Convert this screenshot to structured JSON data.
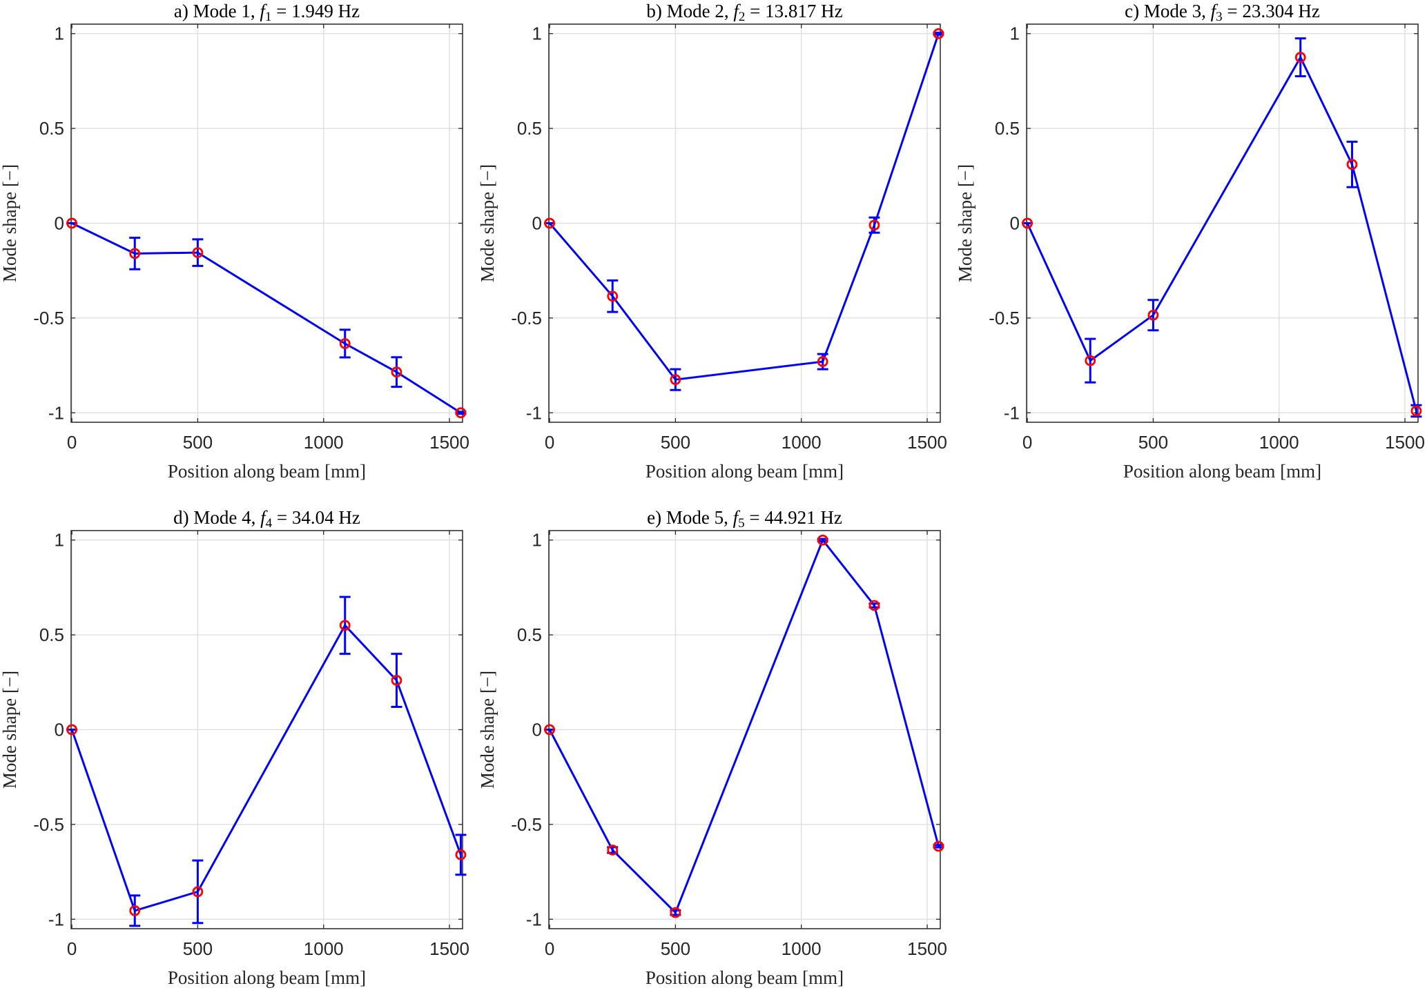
{
  "colors": {
    "line": "#0000ff",
    "marker": "#ff0000",
    "errorbar": "#0000ff",
    "grid": "#dcdcdc",
    "axis": "#262626"
  },
  "chart_data": [
    {
      "type": "line",
      "title": "a) Mode 1, f1 = 1.949 Hz",
      "title_parts": {
        "prefix": "a) Mode 1, ",
        "f": "f",
        "sub": "1",
        "suffix": " = 1.949 Hz"
      },
      "xlabel": "Position along beam [mm]",
      "ylabel": "Mode shape [−]",
      "xlim": [
        -3,
        1552
      ],
      "ylim": [
        -1.05,
        1.05
      ],
      "grid": true,
      "xticks": [
        "0",
        "500",
        "1000",
        "1500"
      ],
      "yticks": [
        "-1",
        "-0.5",
        "0",
        "0.5",
        "1"
      ],
      "x": [
        0,
        250,
        500,
        1085,
        1290,
        1545
      ],
      "y": [
        0,
        -0.16,
        -0.155,
        -0.635,
        -0.785,
        -1
      ],
      "err": [
        0,
        0.083,
        0.07,
        0.073,
        0.078,
        0.005
      ]
    },
    {
      "type": "line",
      "title": "b) Mode 2, f2 = 13.817 Hz",
      "title_parts": {
        "prefix": "b) Mode 2, ",
        "f": "f",
        "sub": "2",
        "suffix": " = 13.817 Hz"
      },
      "xlabel": "Position along beam [mm]",
      "ylabel": "Mode shape [−]",
      "xlim": [
        -3,
        1552
      ],
      "ylim": [
        -1.05,
        1.05
      ],
      "grid": true,
      "xticks": [
        "0",
        "500",
        "1000",
        "1500"
      ],
      "yticks": [
        "-1",
        "-0.5",
        "0",
        "0.5",
        "1"
      ],
      "x": [
        0,
        250,
        500,
        1085,
        1290,
        1545
      ],
      "y": [
        0,
        -0.385,
        -0.825,
        -0.73,
        -0.01,
        1
      ],
      "err": [
        0,
        0.083,
        0.055,
        0.04,
        0.04,
        0.005
      ]
    },
    {
      "type": "line",
      "title": "c) Mode 3, f3 = 23.304 Hz",
      "title_parts": {
        "prefix": "c) Mode 3, ",
        "f": "f",
        "sub": "3",
        "suffix": " = 23.304 Hz"
      },
      "xlabel": "Position along beam [mm]",
      "ylabel": "Mode shape [−]",
      "xlim": [
        -3,
        1552
      ],
      "ylim": [
        -1.05,
        1.05
      ],
      "grid": true,
      "xticks": [
        "0",
        "500",
        "1000",
        "1500"
      ],
      "yticks": [
        "-1",
        "-0.5",
        "0",
        "0.5",
        "1"
      ],
      "x": [
        0,
        250,
        500,
        1085,
        1290,
        1545
      ],
      "y": [
        0,
        -0.725,
        -0.485,
        0.875,
        0.31,
        -0.99
      ],
      "err": [
        0,
        0.115,
        0.08,
        0.1,
        0.12,
        0.03
      ]
    },
    {
      "type": "line",
      "title": "d) Mode 4, f4 = 34.04 Hz",
      "title_parts": {
        "prefix": "d) Mode 4, ",
        "f": "f",
        "sub": "4",
        "suffix": " = 34.04 Hz"
      },
      "xlabel": "Position along beam [mm]",
      "ylabel": "Mode shape [−]",
      "xlim": [
        -3,
        1552
      ],
      "ylim": [
        -1.05,
        1.05
      ],
      "grid": true,
      "xticks": [
        "0",
        "500",
        "1000",
        "1500"
      ],
      "yticks": [
        "-1",
        "-0.5",
        "0",
        "0.5",
        "1"
      ],
      "x": [
        0,
        250,
        500,
        1085,
        1290,
        1545
      ],
      "y": [
        0,
        -0.955,
        -0.855,
        0.55,
        0.26,
        -0.66
      ],
      "err": [
        0,
        0.08,
        0.165,
        0.15,
        0.14,
        0.105
      ]
    },
    {
      "type": "line",
      "title": "e) Mode 5, f5 = 44.921 Hz",
      "title_parts": {
        "prefix": "e) Mode 5, ",
        "f": "f",
        "sub": "5",
        "suffix": " = 44.921 Hz"
      },
      "xlabel": "Position along beam [mm]",
      "ylabel": "Mode shape [−]",
      "xlim": [
        -3,
        1552
      ],
      "ylim": [
        -1.05,
        1.05
      ],
      "grid": true,
      "xticks": [
        "0",
        "500",
        "1000",
        "1500"
      ],
      "yticks": [
        "-1",
        "-0.5",
        "0",
        "0.5",
        "1"
      ],
      "x": [
        0,
        250,
        500,
        1085,
        1290,
        1545
      ],
      "y": [
        0,
        -0.635,
        -0.965,
        1,
        0.655,
        -0.615
      ],
      "err": [
        0,
        0.015,
        0.012,
        0.006,
        0.01,
        0.006
      ]
    }
  ]
}
